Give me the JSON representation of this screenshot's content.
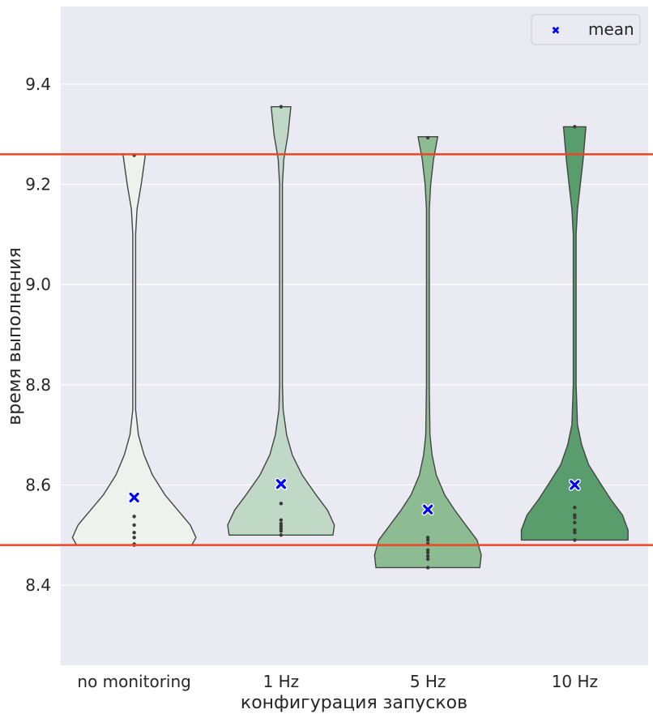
{
  "chart_data": {
    "type": "violin",
    "xlabel": "конфигурация запусков",
    "ylabel": "время выполнения",
    "ylim": [
      8.24,
      9.555
    ],
    "yticks": [
      "8.4",
      "8.6",
      "8.8",
      "9.0",
      "9.2",
      "9.4"
    ],
    "grid": true,
    "legend": {
      "position": "top-right",
      "entries": [
        "mean"
      ]
    },
    "reference_lines": [
      {
        "y": 9.26,
        "color": "#ee4422"
      },
      {
        "y": 8.48,
        "color": "#ee4422"
      }
    ],
    "categories": [
      "no monitoring",
      "1 Hz",
      "5 Hz",
      "10 Hz"
    ],
    "colors": [
      "#edf2ed",
      "#bfd9c6",
      "#8dbb92",
      "#5a9d6c"
    ],
    "series": [
      {
        "category": "no monitoring",
        "min": 8.48,
        "max": 9.26,
        "mean": 8.575,
        "points": [
          8.48,
          8.482,
          8.495,
          8.505,
          8.52,
          8.537,
          9.258
        ],
        "profile": [
          [
            8.48,
            0.41
          ],
          [
            8.495,
            0.44
          ],
          [
            8.52,
            0.4
          ],
          [
            8.55,
            0.31
          ],
          [
            8.58,
            0.22
          ],
          [
            8.62,
            0.13
          ],
          [
            8.66,
            0.07
          ],
          [
            8.7,
            0.03
          ],
          [
            8.75,
            0.01
          ],
          [
            8.8,
            0.01
          ],
          [
            9.0,
            0.01
          ],
          [
            9.1,
            0.01
          ],
          [
            9.15,
            0.02
          ],
          [
            9.2,
            0.05
          ],
          [
            9.26,
            0.08
          ]
        ]
      },
      {
        "category": "1 Hz",
        "min": 8.5,
        "max": 9.355,
        "mean": 8.602,
        "points": [
          8.5,
          8.508,
          8.513,
          8.518,
          8.523,
          8.53,
          8.563,
          9.355
        ],
        "profile": [
          [
            8.5,
            0.37
          ],
          [
            8.52,
            0.38
          ],
          [
            8.55,
            0.33
          ],
          [
            8.58,
            0.25
          ],
          [
            8.62,
            0.15
          ],
          [
            8.66,
            0.08
          ],
          [
            8.7,
            0.04
          ],
          [
            8.75,
            0.015
          ],
          [
            8.8,
            0.01
          ],
          [
            9.0,
            0.01
          ],
          [
            9.2,
            0.01
          ],
          [
            9.25,
            0.02
          ],
          [
            9.3,
            0.05
          ],
          [
            9.355,
            0.07
          ]
        ]
      },
      {
        "category": "5 Hz",
        "min": 8.435,
        "max": 9.295,
        "mean": 8.551,
        "points": [
          8.435,
          8.452,
          8.458,
          8.465,
          8.47,
          8.483,
          8.49,
          8.495,
          9.293
        ],
        "profile": [
          [
            8.435,
            0.37
          ],
          [
            8.46,
            0.38
          ],
          [
            8.49,
            0.35
          ],
          [
            8.52,
            0.27
          ],
          [
            8.55,
            0.19
          ],
          [
            8.58,
            0.12
          ],
          [
            8.62,
            0.06
          ],
          [
            8.66,
            0.03
          ],
          [
            8.7,
            0.015
          ],
          [
            8.8,
            0.01
          ],
          [
            9.0,
            0.01
          ],
          [
            9.15,
            0.01
          ],
          [
            9.2,
            0.02
          ],
          [
            9.25,
            0.04
          ],
          [
            9.295,
            0.07
          ]
        ]
      },
      {
        "category": "10 Hz",
        "min": 8.49,
        "max": 9.315,
        "mean": 8.6,
        "points": [
          8.49,
          8.505,
          8.51,
          8.525,
          8.535,
          8.54,
          8.555,
          9.315
        ],
        "profile": [
          [
            8.49,
            0.38
          ],
          [
            8.51,
            0.38
          ],
          [
            8.54,
            0.34
          ],
          [
            8.57,
            0.26
          ],
          [
            8.6,
            0.19
          ],
          [
            8.64,
            0.1
          ],
          [
            8.68,
            0.05
          ],
          [
            8.72,
            0.02
          ],
          [
            8.8,
            0.01
          ],
          [
            9.0,
            0.01
          ],
          [
            9.1,
            0.01
          ],
          [
            9.15,
            0.02
          ],
          [
            9.2,
            0.04
          ],
          [
            9.25,
            0.06
          ],
          [
            9.315,
            0.08
          ]
        ]
      }
    ]
  }
}
